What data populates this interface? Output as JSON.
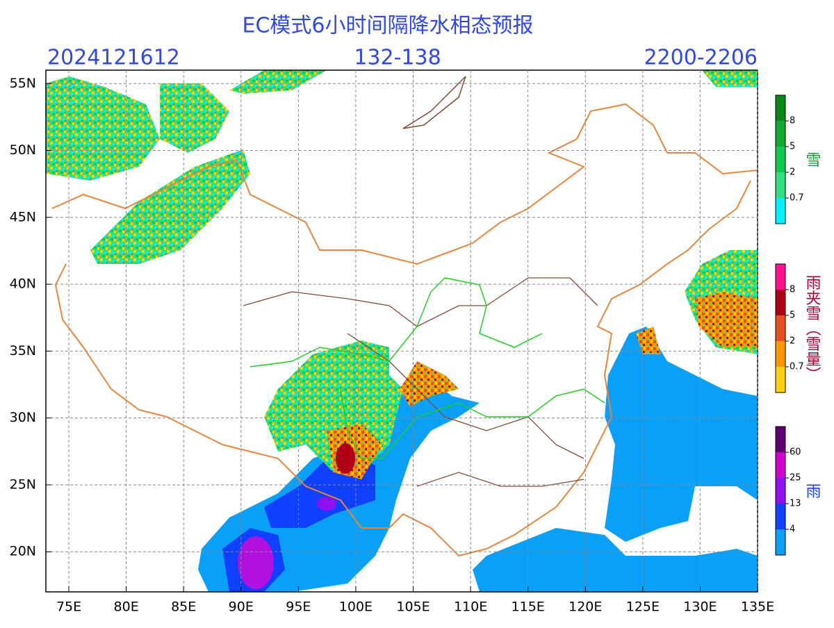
{
  "map": {
    "title": "EC模式6小时间隔降水相态预报",
    "init_time": "2024121612",
    "forecast_hours": "132-138",
    "valid_time": "2200-2206",
    "xlim": [
      73,
      135
    ],
    "ylim": [
      17,
      56
    ],
    "grid": true,
    "xticks": [
      {
        "value": 75,
        "label": "75E"
      },
      {
        "value": 80,
        "label": "80E"
      },
      {
        "value": 85,
        "label": "85E"
      },
      {
        "value": 90,
        "label": "90E"
      },
      {
        "value": 95,
        "label": "95E"
      },
      {
        "value": 100,
        "label": "100E"
      },
      {
        "value": 105,
        "label": "105E"
      },
      {
        "value": 110,
        "label": "110E"
      },
      {
        "value": 115,
        "label": "115E"
      },
      {
        "value": 120,
        "label": "120E"
      },
      {
        "value": 125,
        "label": "125E"
      },
      {
        "value": 130,
        "label": "130E"
      },
      {
        "value": 135,
        "label": "135E"
      }
    ],
    "yticks": [
      {
        "value": 20,
        "label": "20N"
      },
      {
        "value": 25,
        "label": "25N"
      },
      {
        "value": 30,
        "label": "30N"
      },
      {
        "value": 35,
        "label": "35N"
      },
      {
        "value": 40,
        "label": "40N"
      },
      {
        "value": 45,
        "label": "45N"
      },
      {
        "value": 50,
        "label": "50N"
      },
      {
        "value": 55,
        "label": "55N"
      }
    ],
    "legends": [
      {
        "label": "雪",
        "label_color": "#10a030",
        "ticks": [
          0.7,
          2,
          5,
          8
        ],
        "colors": [
          "#00f0ff",
          "#30e080",
          "#10c850",
          "#10a830",
          "#088818"
        ]
      },
      {
        "label": "雨夹雪（雪量）",
        "label_color": "#b00030",
        "ticks": [
          0.7,
          2,
          5,
          8
        ],
        "colors": [
          "#ffd010",
          "#ff9800",
          "#e85020",
          "#b00018",
          "#ff1090"
        ]
      },
      {
        "label": "雨",
        "label_color": "#2040ff",
        "ticks": [
          4,
          13,
          25,
          60
        ],
        "colors": [
          "#0aa0f8",
          "#1040ff",
          "#9010f0",
          "#d000d0",
          "#600070"
        ]
      }
    ]
  }
}
